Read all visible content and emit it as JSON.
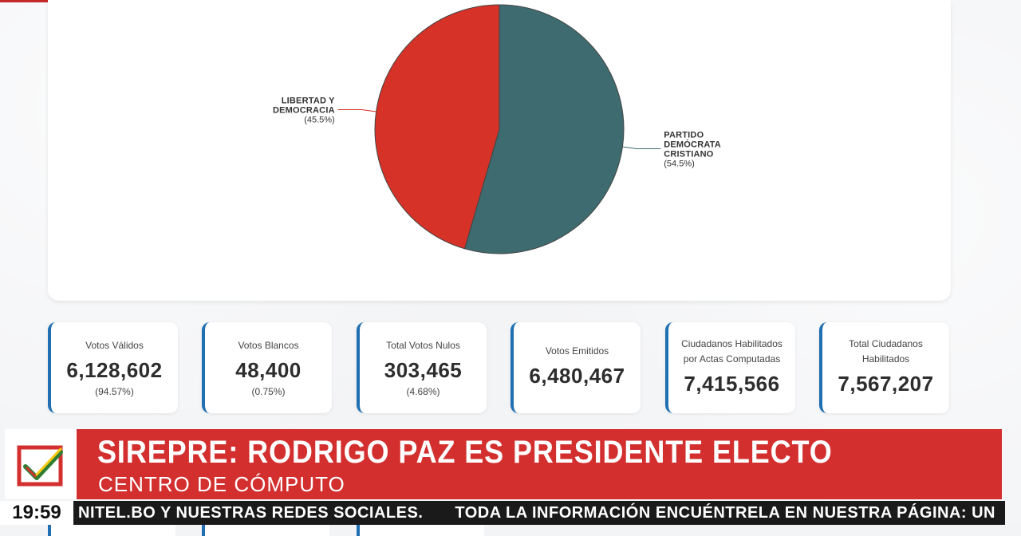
{
  "chart_data": {
    "type": "pie",
    "slices": [
      {
        "label_lines": [
          "PARTIDO",
          "DEMÓCRATA",
          "CRISTIANO"
        ],
        "pct_text": "(54.5%)",
        "value": 54.5,
        "color": "#3d6b6f"
      },
      {
        "label_lines": [
          "LIBERTAD Y",
          "DEMOCRACIA"
        ],
        "pct_text": "(45.5%)",
        "value": 45.5,
        "color": "#d63228"
      }
    ]
  },
  "stats": [
    {
      "label": "Votos Válidos",
      "value": "6,128,602",
      "pct": "(94.57%)"
    },
    {
      "label": "Votos Blancos",
      "value": "48,400",
      "pct": "(0.75%)"
    },
    {
      "label": "Total Votos Nulos",
      "value": "303,465",
      "pct": "(4.68%)"
    },
    {
      "label": "Votos Emitidos",
      "value": "6,480,467",
      "pct": ""
    },
    {
      "label": "Ciudadanos Habilitados por Actas Computadas",
      "value": "7,415,566",
      "pct": ""
    },
    {
      "label": "Total Ciudadanos Habilitados",
      "value": "7,567,207",
      "pct": ""
    }
  ],
  "banner": {
    "headline": "SIREPRE: RODRIGO PAZ ES PRESIDENTE ELECTO",
    "subhead": "CENTRO DE CÓMPUTO"
  },
  "ticker": {
    "time": "19:59",
    "text_1": "NITEL.BO Y NUESTRAS REDES SOCIALES.",
    "text_2": "TODA LA INFORMACIÓN ENCUÉNTRELA EN NUESTRA PÁGINA: UNITEL.BO Y NUESTRAS"
  },
  "colors": {
    "accent_blue": "#1f6fb2",
    "banner_red": "#d32f2f"
  }
}
